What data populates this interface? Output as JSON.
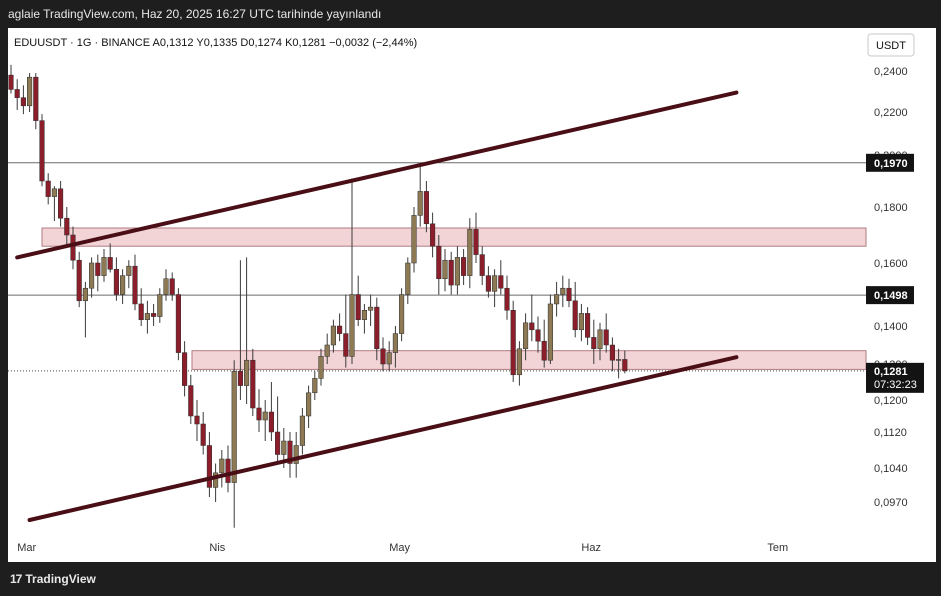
{
  "header": {
    "publish_text": "aglaie TradingView.com, Haz 20, 2025 16:27 UTC tarihinde yayınlandı"
  },
  "footer": {
    "brand_mark": "17",
    "brand_text": "TradingView"
  },
  "chart_data": {
    "type": "candlestick",
    "symbol_line": "EDUUSDT · 1G · BINANCE  A0,1312  Y0,1335  D0,1274  K0,1281  −0,0032 (−2,44%)",
    "currency_label": "USDT",
    "x_ticks": [
      "Mar",
      "Nis",
      "May",
      "Haz",
      "Tem"
    ],
    "y_ticks": [
      "0,2400",
      "0,2200",
      "0,2000",
      "0,1800",
      "0,1600",
      "0,1400",
      "0,1300",
      "0,1200",
      "0,1120",
      "0,1040",
      "0,0970"
    ],
    "y_tick_values": [
      0.24,
      0.22,
      0.2,
      0.18,
      0.16,
      0.14,
      0.13,
      0.12,
      0.112,
      0.104,
      0.097
    ],
    "price_badges": [
      {
        "label": "0,1970",
        "value": 0.197
      },
      {
        "label": "0,1498",
        "value": 0.1498
      }
    ],
    "current_price": {
      "label": "0,1281",
      "countdown": "07:32:23",
      "value": 0.1281
    },
    "horizontal_lines": [
      0.197,
      0.1498
    ],
    "zones": [
      {
        "name": "upper resistance zone",
        "low": 0.166,
        "high": 0.1725
      },
      {
        "name": "lower support zone",
        "low": 0.1285,
        "high": 0.1335
      }
    ],
    "channel_upper": {
      "start": {
        "day": 1,
        "y": 0.162
      },
      "end": {
        "day": 117,
        "y": 0.2295
      }
    },
    "channel_lower": {
      "start": {
        "day": 3,
        "y": 0.0935
      },
      "end": {
        "day": 117,
        "y": 0.1318
      }
    },
    "colors": {
      "up": "#8d7a55",
      "down": "#8b1e2a",
      "wick": "#3a3a3a",
      "zone": "#f3d4d6",
      "zone_border": "#b07a80",
      "channel": "#4a0f16",
      "badge_bg": "#131313",
      "badge_text": "#ffffff"
    },
    "candles": [
      [
        0.238,
        0.243,
        0.229,
        0.231
      ],
      [
        0.231,
        0.236,
        0.221,
        0.227
      ],
      [
        0.227,
        0.233,
        0.219,
        0.223
      ],
      [
        0.223,
        0.239,
        0.22,
        0.237
      ],
      [
        0.237,
        0.239,
        0.212,
        0.216
      ],
      [
        0.216,
        0.219,
        0.188,
        0.19
      ],
      [
        0.19,
        0.193,
        0.181,
        0.184
      ],
      [
        0.184,
        0.188,
        0.175,
        0.187
      ],
      [
        0.187,
        0.19,
        0.173,
        0.176
      ],
      [
        0.176,
        0.18,
        0.166,
        0.17
      ],
      [
        0.17,
        0.173,
        0.158,
        0.161
      ],
      [
        0.161,
        0.164,
        0.146,
        0.148
      ],
      [
        0.148,
        0.154,
        0.137,
        0.152
      ],
      [
        0.152,
        0.162,
        0.149,
        0.16
      ],
      [
        0.16,
        0.163,
        0.151,
        0.156
      ],
      [
        0.156,
        0.165,
        0.154,
        0.162
      ],
      [
        0.162,
        0.167,
        0.157,
        0.158
      ],
      [
        0.158,
        0.162,
        0.148,
        0.15
      ],
      [
        0.15,
        0.158,
        0.147,
        0.156
      ],
      [
        0.156,
        0.161,
        0.152,
        0.159
      ],
      [
        0.159,
        0.163,
        0.145,
        0.147
      ],
      [
        0.147,
        0.152,
        0.14,
        0.142
      ],
      [
        0.142,
        0.148,
        0.138,
        0.144
      ],
      [
        0.144,
        0.147,
        0.14,
        0.143
      ],
      [
        0.143,
        0.152,
        0.141,
        0.15
      ],
      [
        0.15,
        0.158,
        0.148,
        0.155
      ],
      [
        0.155,
        0.157,
        0.148,
        0.15
      ],
      [
        0.15,
        0.152,
        0.131,
        0.133
      ],
      [
        0.133,
        0.136,
        0.121,
        0.124
      ],
      [
        0.124,
        0.127,
        0.114,
        0.116
      ],
      [
        0.116,
        0.12,
        0.11,
        0.114
      ],
      [
        0.114,
        0.117,
        0.107,
        0.109
      ],
      [
        0.109,
        0.112,
        0.098,
        0.1
      ],
      [
        0.1,
        0.105,
        0.097,
        0.103
      ],
      [
        0.103,
        0.108,
        0.1,
        0.106
      ],
      [
        0.106,
        0.109,
        0.099,
        0.101
      ],
      [
        0.101,
        0.131,
        0.092,
        0.128
      ],
      [
        0.128,
        0.161,
        0.12,
        0.124
      ],
      [
        0.124,
        0.162,
        0.119,
        0.131
      ],
      [
        0.131,
        0.134,
        0.116,
        0.118
      ],
      [
        0.118,
        0.123,
        0.112,
        0.115
      ],
      [
        0.115,
        0.12,
        0.11,
        0.117
      ],
      [
        0.117,
        0.125,
        0.11,
        0.112
      ],
      [
        0.112,
        0.121,
        0.105,
        0.107
      ],
      [
        0.107,
        0.113,
        0.104,
        0.11
      ],
      [
        0.11,
        0.112,
        0.102,
        0.105
      ],
      [
        0.105,
        0.112,
        0.102,
        0.109
      ],
      [
        0.109,
        0.118,
        0.107,
        0.116
      ],
      [
        0.116,
        0.124,
        0.113,
        0.122
      ],
      [
        0.122,
        0.128,
        0.12,
        0.126
      ],
      [
        0.126,
        0.134,
        0.124,
        0.132
      ],
      [
        0.132,
        0.138,
        0.13,
        0.135
      ],
      [
        0.135,
        0.142,
        0.133,
        0.14
      ],
      [
        0.14,
        0.144,
        0.136,
        0.138
      ],
      [
        0.138,
        0.15,
        0.129,
        0.132
      ],
      [
        0.132,
        0.191,
        0.13,
        0.15
      ],
      [
        0.15,
        0.156,
        0.14,
        0.142
      ],
      [
        0.142,
        0.147,
        0.138,
        0.145
      ],
      [
        0.145,
        0.15,
        0.14,
        0.146
      ],
      [
        0.146,
        0.149,
        0.131,
        0.134
      ],
      [
        0.134,
        0.137,
        0.128,
        0.13
      ],
      [
        0.13,
        0.136,
        0.128,
        0.133
      ],
      [
        0.133,
        0.14,
        0.129,
        0.138
      ],
      [
        0.138,
        0.152,
        0.136,
        0.15
      ],
      [
        0.15,
        0.162,
        0.147,
        0.16
      ],
      [
        0.16,
        0.18,
        0.157,
        0.177
      ],
      [
        0.177,
        0.197,
        0.173,
        0.186
      ],
      [
        0.186,
        0.19,
        0.171,
        0.174
      ],
      [
        0.174,
        0.178,
        0.162,
        0.166
      ],
      [
        0.166,
        0.17,
        0.15,
        0.155
      ],
      [
        0.155,
        0.165,
        0.151,
        0.161
      ],
      [
        0.161,
        0.164,
        0.15,
        0.153
      ],
      [
        0.153,
        0.166,
        0.15,
        0.162
      ],
      [
        0.162,
        0.165,
        0.153,
        0.156
      ],
      [
        0.156,
        0.176,
        0.152,
        0.172
      ],
      [
        0.172,
        0.178,
        0.16,
        0.163
      ],
      [
        0.163,
        0.166,
        0.153,
        0.156
      ],
      [
        0.156,
        0.159,
        0.149,
        0.151
      ],
      [
        0.151,
        0.158,
        0.146,
        0.156
      ],
      [
        0.156,
        0.161,
        0.15,
        0.152
      ],
      [
        0.152,
        0.156,
        0.142,
        0.145
      ],
      [
        0.145,
        0.148,
        0.125,
        0.127
      ],
      [
        0.127,
        0.136,
        0.124,
        0.134
      ],
      [
        0.134,
        0.144,
        0.131,
        0.141
      ],
      [
        0.141,
        0.15,
        0.136,
        0.139
      ],
      [
        0.139,
        0.143,
        0.133,
        0.136
      ],
      [
        0.136,
        0.142,
        0.129,
        0.131
      ],
      [
        0.131,
        0.15,
        0.13,
        0.147
      ],
      [
        0.147,
        0.154,
        0.143,
        0.15
      ],
      [
        0.15,
        0.156,
        0.146,
        0.152
      ],
      [
        0.152,
        0.155,
        0.146,
        0.148
      ],
      [
        0.148,
        0.154,
        0.137,
        0.139
      ],
      [
        0.139,
        0.147,
        0.136,
        0.144
      ],
      [
        0.144,
        0.146,
        0.135,
        0.137
      ],
      [
        0.137,
        0.142,
        0.13,
        0.134
      ],
      [
        0.134,
        0.141,
        0.131,
        0.139
      ],
      [
        0.139,
        0.144,
        0.133,
        0.135
      ],
      [
        0.135,
        0.137,
        0.128,
        0.131
      ],
      [
        0.131,
        0.134,
        0.126,
        0.1312
      ],
      [
        0.1312,
        0.1335,
        0.1274,
        0.1281
      ]
    ]
  }
}
